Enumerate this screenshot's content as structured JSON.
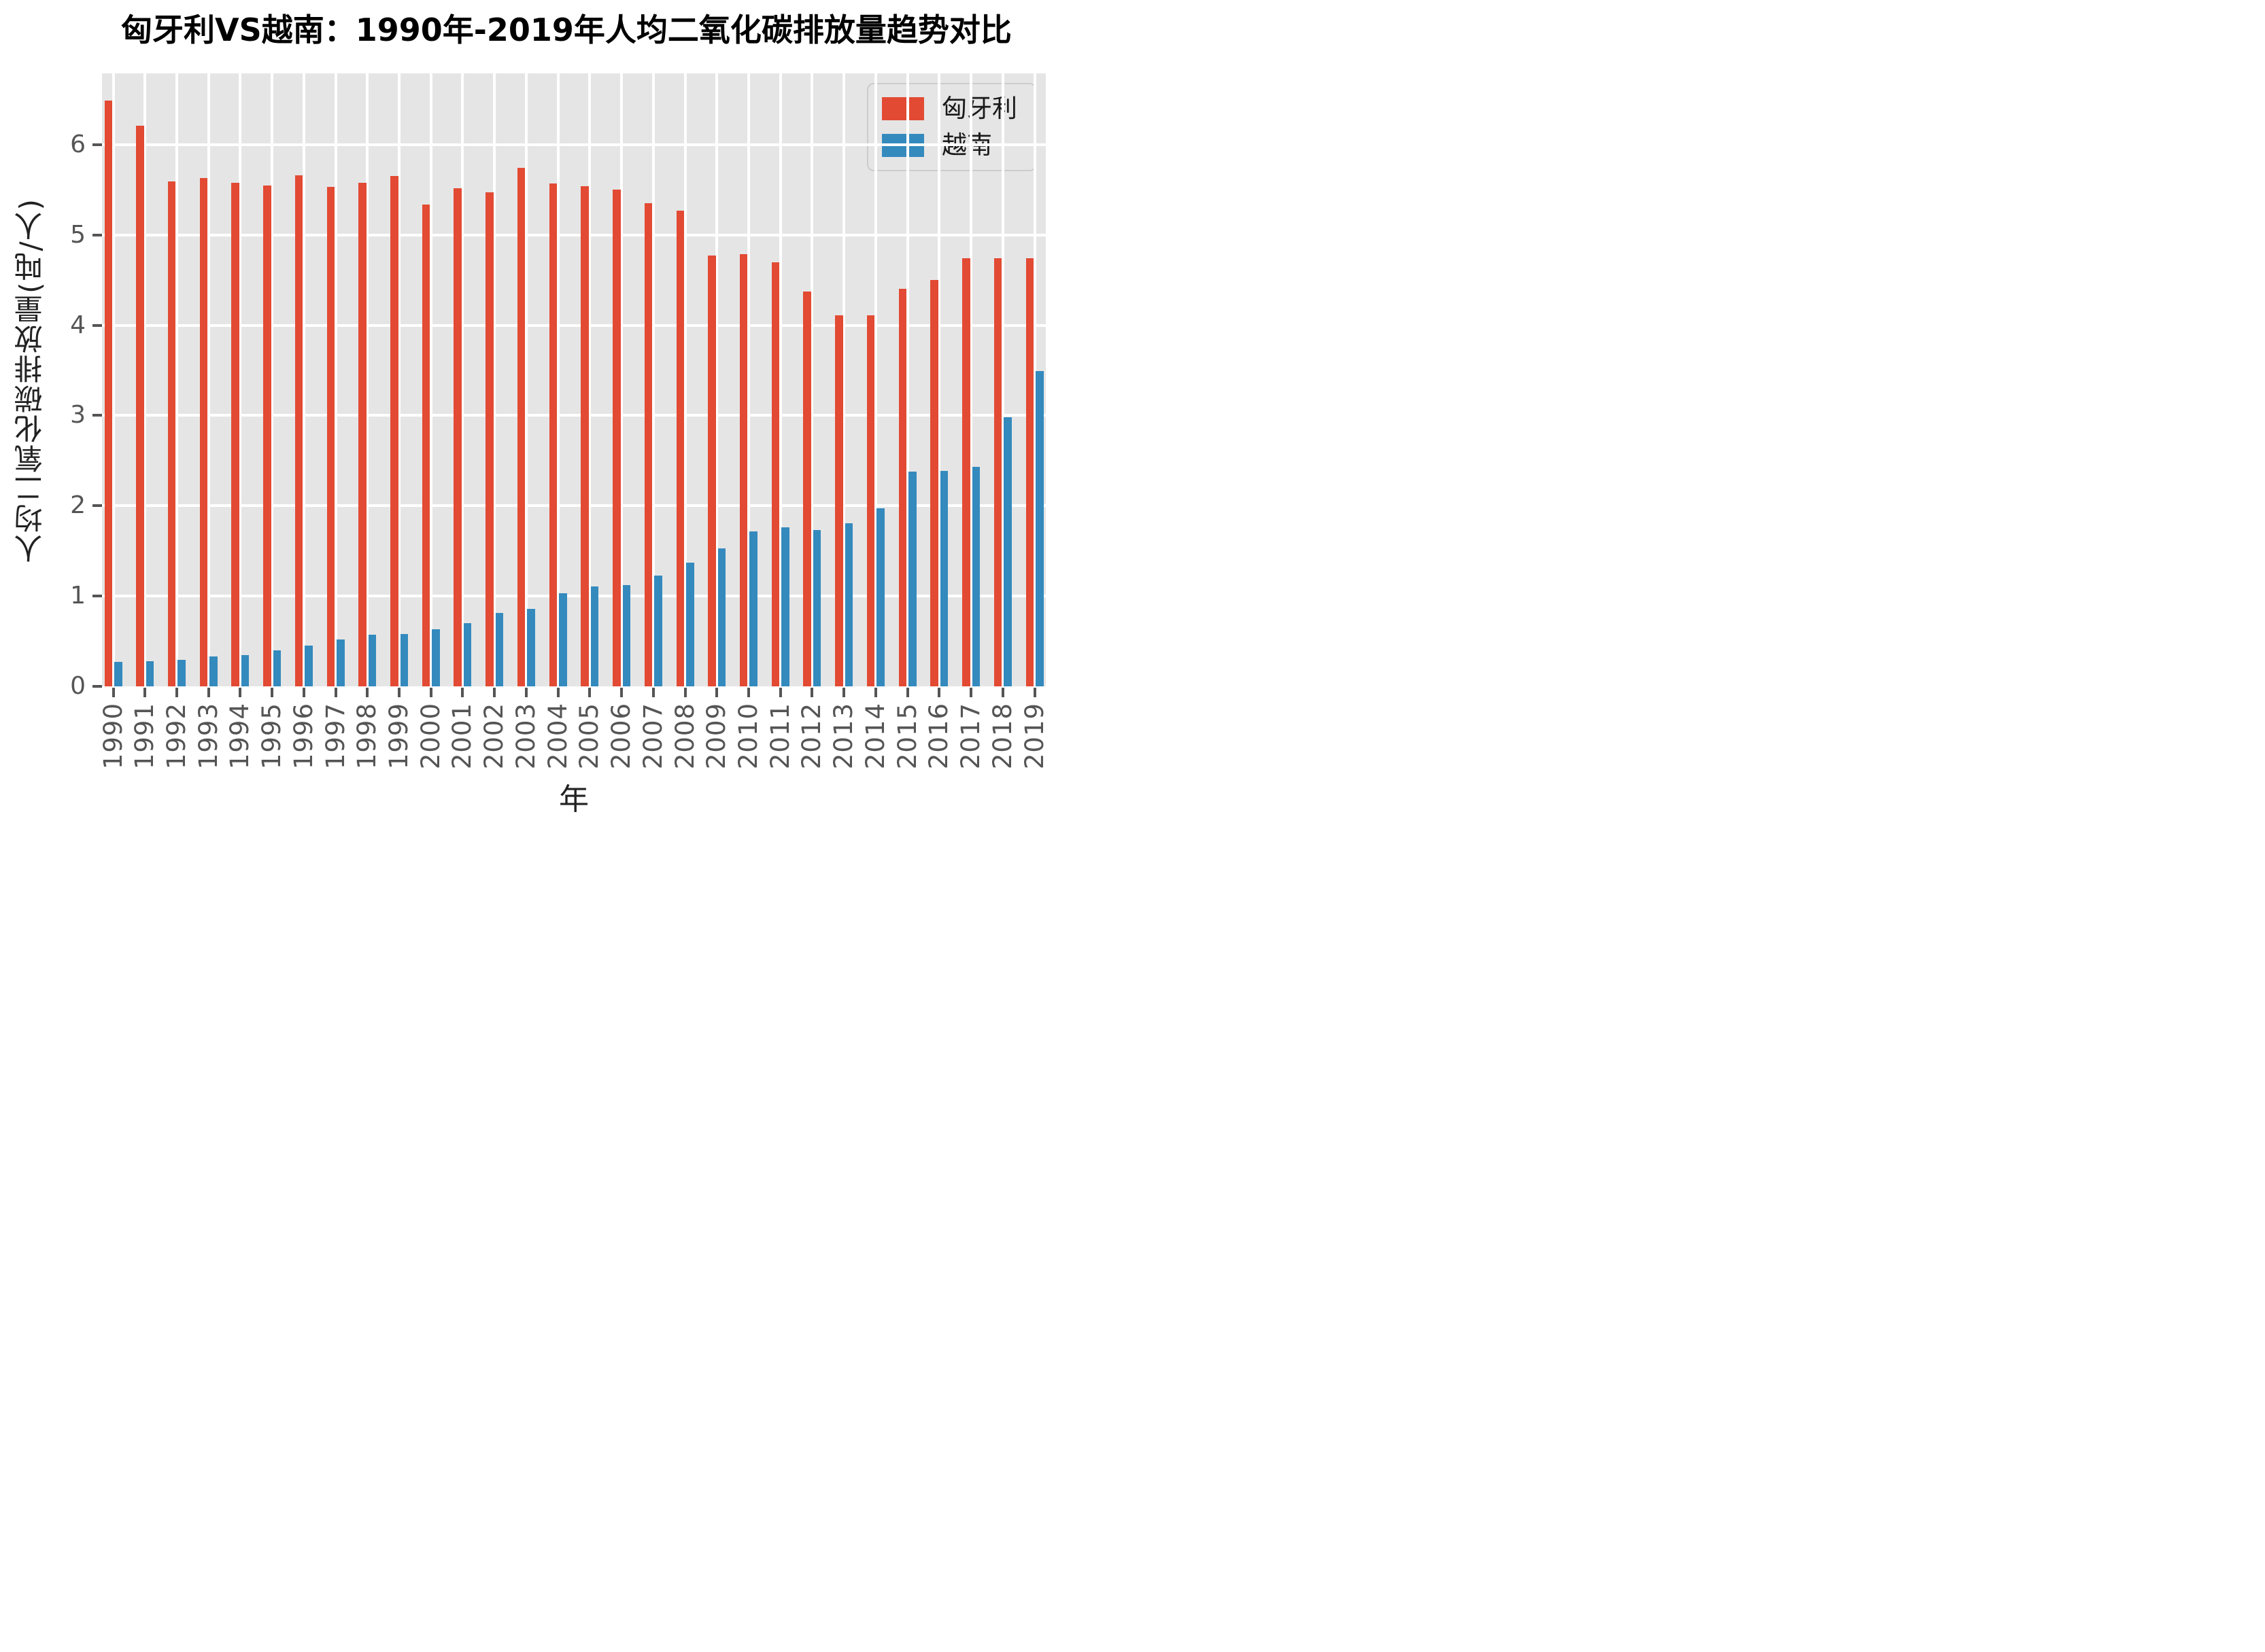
{
  "title": "匈牙利VS越南：1990年-2019年人均二氧化碳排放量趋势对比",
  "chart_data": {
    "type": "bar",
    "title": "匈牙利VS越南：1990年-2019年人均二氧化碳排放量趋势对比",
    "xlabel": "年",
    "ylabel": "人均二氧化碳排放量(吨/人)",
    "ylim": [
      0,
      6.79
    ],
    "yticks": [
      0,
      1,
      2,
      3,
      4,
      5,
      6
    ],
    "grid": "white gridlines on gray panel (ggplot style)",
    "legend_position": "upper right",
    "categories": [
      "1990",
      "1991",
      "1992",
      "1993",
      "1994",
      "1995",
      "1996",
      "1997",
      "1998",
      "1999",
      "2000",
      "2001",
      "2002",
      "2003",
      "2004",
      "2005",
      "2006",
      "2007",
      "2008",
      "2009",
      "2010",
      "2011",
      "2012",
      "2013",
      "2014",
      "2015",
      "2016",
      "2017",
      "2018",
      "2019"
    ],
    "series": [
      {
        "name": "匈牙利",
        "key": "hungary",
        "color": "#E24A33",
        "values": [
          6.49,
          6.21,
          5.59,
          5.63,
          5.58,
          5.55,
          5.66,
          5.53,
          5.58,
          5.65,
          5.34,
          5.52,
          5.47,
          5.74,
          5.57,
          5.54,
          5.5,
          5.35,
          5.27,
          4.77,
          4.79,
          4.7,
          4.37,
          4.11,
          4.11,
          4.4,
          4.5,
          4.74,
          4.74,
          4.74
        ]
      },
      {
        "name": "越南",
        "key": "vietnam",
        "color": "#348ABD",
        "values": [
          0.27,
          0.28,
          0.29,
          0.33,
          0.35,
          0.4,
          0.45,
          0.52,
          0.57,
          0.58,
          0.63,
          0.7,
          0.81,
          0.86,
          1.03,
          1.11,
          1.12,
          1.23,
          1.37,
          1.53,
          1.72,
          1.76,
          1.73,
          1.81,
          1.97,
          2.38,
          2.39,
          2.43,
          2.98,
          3.49
        ]
      }
    ]
  },
  "colors": {
    "panel_background": "#E5E5E5",
    "figure_background": "#FFFFFF",
    "gridline": "#FFFFFF",
    "tick_text": "#555555",
    "title_text": "#000000",
    "hungary": "#E24A33",
    "vietnam": "#348ABD"
  }
}
